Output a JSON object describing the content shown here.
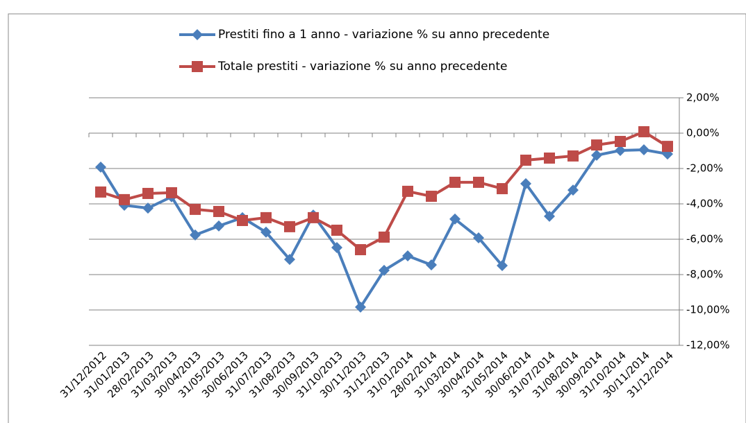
{
  "chart_data": {
    "type": "line",
    "categories": [
      "31/12/2012",
      "31/01/2013",
      "28/02/2013",
      "31/03/2013",
      "30/04/2013",
      "31/05/2013",
      "30/06/2013",
      "31/07/2013",
      "31/08/2013",
      "30/09/2013",
      "31/10/2013",
      "30/11/2013",
      "31/12/2013",
      "31/01/2014",
      "28/02/2014",
      "31/03/2014",
      "30/04/2014",
      "31/05/2014",
      "30/06/2014",
      "31/07/2014",
      "31/08/2014",
      "30/09/2014",
      "31/10/2014",
      "30/11/2014",
      "31/12/2014"
    ],
    "series": [
      {
        "name": "Prestiti fino a 1 anno - variazione % su anno precedente",
        "color": "#4a7ebb",
        "marker": "diamond",
        "values": [
          -1.92,
          -4.08,
          -4.24,
          -3.6,
          -5.76,
          -5.25,
          -4.78,
          -5.6,
          -7.14,
          -4.63,
          -6.47,
          -9.84,
          -7.76,
          -6.94,
          -7.45,
          -4.86,
          -5.92,
          -7.49,
          -2.86,
          -4.7,
          -3.22,
          -1.25,
          -0.98,
          -0.94,
          -1.18
        ]
      },
      {
        "name": "Totale prestiti  - variazione % su anno precedente",
        "color": "#be4b48",
        "marker": "square",
        "values": [
          -3.33,
          -3.76,
          -3.41,
          -3.37,
          -4.31,
          -4.43,
          -4.94,
          -4.78,
          -5.29,
          -4.78,
          -5.49,
          -6.59,
          -5.88,
          -3.29,
          -3.57,
          -2.78,
          -2.78,
          -3.14,
          -1.53,
          -1.41,
          -1.29,
          -0.67,
          -0.47,
          0.08,
          -0.75
        ]
      }
    ],
    "ylim": [
      -12,
      2
    ],
    "yticks": [
      {
        "value": 2,
        "label": "2,00%"
      },
      {
        "value": 0,
        "label": "0,00%"
      },
      {
        "value": -2,
        "label": "-2,00%"
      },
      {
        "value": -4,
        "label": "-4,00%"
      },
      {
        "value": -6,
        "label": "-6,00%"
      },
      {
        "value": -8,
        "label": "-8,00%"
      },
      {
        "value": -10,
        "label": "-10,00%"
      },
      {
        "value": -12,
        "label": "-12,00%"
      }
    ],
    "grid": true,
    "y_axis_side": "right",
    "legend": "top"
  }
}
